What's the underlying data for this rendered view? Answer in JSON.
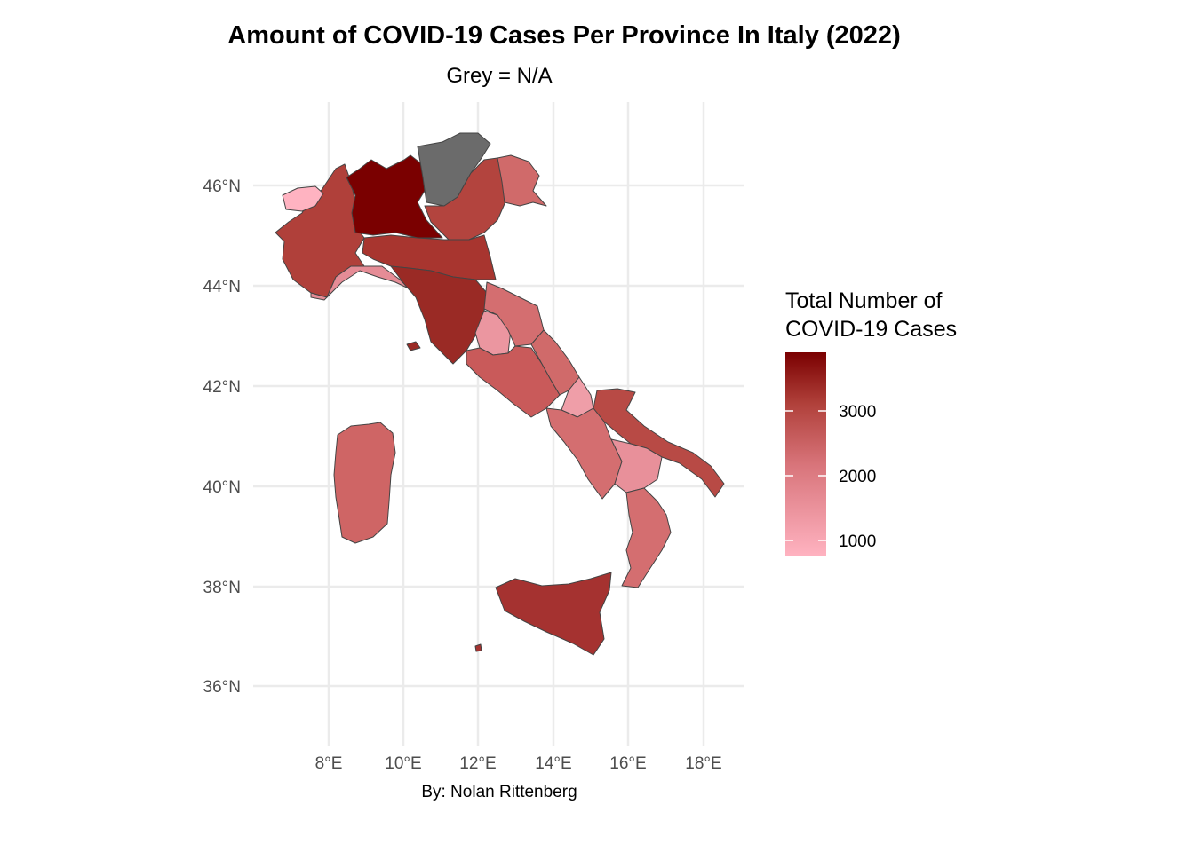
{
  "title": "Amount of COVID-19 Cases Per Province In Italy (2022)",
  "subtitle": "Grey = N/A",
  "caption": "By: Nolan Rittenberg",
  "axes": {
    "x_ticks": [
      "8°E",
      "10°E",
      "12°E",
      "14°E",
      "16°E",
      "18°E"
    ],
    "y_ticks": [
      "46°N",
      "44°N",
      "42°N",
      "40°N",
      "38°N",
      "36°N"
    ]
  },
  "legend": {
    "title_line1": "Total Number of",
    "title_line2": "COVID-19 Cases",
    "ticks": [
      "3000",
      "2000",
      "1000"
    ],
    "low_color": "#ffb3c1",
    "high_color": "#7a0000",
    "na_color": "#6b6b6b"
  },
  "regions": [
    {
      "name": "Lombardia",
      "level": "very high",
      "color": "#7a0000"
    },
    {
      "name": "Piemonte",
      "level": "high",
      "color": "#b0403a"
    },
    {
      "name": "Emilia-Romagna",
      "level": "high",
      "color": "#a8352f"
    },
    {
      "name": "Toscana",
      "level": "high",
      "color": "#9a2a25"
    },
    {
      "name": "Veneto",
      "level": "high",
      "color": "#b3443e"
    },
    {
      "name": "Friuli-Venezia Giulia",
      "level": "medium",
      "color": "#d06a6a"
    },
    {
      "name": "Trentino-Alto Adige",
      "level": "N/A",
      "color": "#6b6b6b"
    },
    {
      "name": "Valle d'Aosta",
      "level": "low",
      "color": "#ffb3c1"
    },
    {
      "name": "Liguria",
      "level": "low",
      "color": "#e58c96"
    },
    {
      "name": "Umbria",
      "level": "low",
      "color": "#eb96a0"
    },
    {
      "name": "Marche",
      "level": "medium",
      "color": "#d46e70"
    },
    {
      "name": "Lazio",
      "level": "medium",
      "color": "#c95a5a"
    },
    {
      "name": "Abruzzo",
      "level": "medium",
      "color": "#d06a6a"
    },
    {
      "name": "Molise",
      "level": "low",
      "color": "#ef9ea8"
    },
    {
      "name": "Campania",
      "level": "medium",
      "color": "#d46e70"
    },
    {
      "name": "Puglia",
      "level": "high",
      "color": "#b84a45"
    },
    {
      "name": "Basilicata",
      "level": "low",
      "color": "#e8909a"
    },
    {
      "name": "Calabria",
      "level": "medium",
      "color": "#d46e70"
    },
    {
      "name": "Sicilia",
      "level": "high",
      "color": "#a53230"
    },
    {
      "name": "Sardegna",
      "level": "medium",
      "color": "#cf6565"
    }
  ]
}
